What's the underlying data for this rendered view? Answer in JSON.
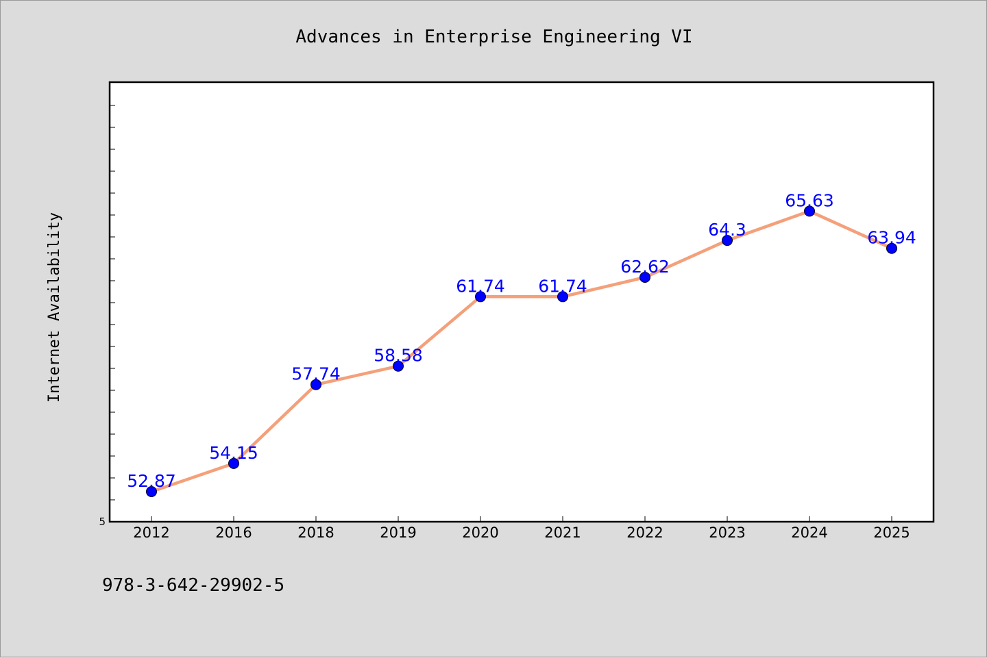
{
  "chart_data": {
    "type": "line",
    "title": "Advances in Enterprise Engineering VI",
    "ylabel": "Internet Availability",
    "xlabel": "",
    "categories": [
      "2012",
      "2016",
      "2018",
      "2019",
      "2020",
      "2021",
      "2022",
      "2023",
      "2024",
      "2025"
    ],
    "series": [
      {
        "values": [
          52.87,
          54.15,
          57.74,
          58.58,
          61.74,
          61.74,
          62.62,
          64.3,
          65.63,
          63.94
        ],
        "line_color": "#f4a07a",
        "marker_color": "#0000ff"
      }
    ],
    "data_labels": [
      "52.87",
      "54.15",
      "57.74",
      "58.58",
      "61.74",
      "61.74",
      "62.62",
      "64.3",
      "65.63",
      "63.94"
    ],
    "ylim": [
      51.5,
      71.5
    ],
    "ytick_labels": [
      "5"
    ],
    "grid": false,
    "legend": "none"
  },
  "footnote": "978-3-642-29902-5"
}
